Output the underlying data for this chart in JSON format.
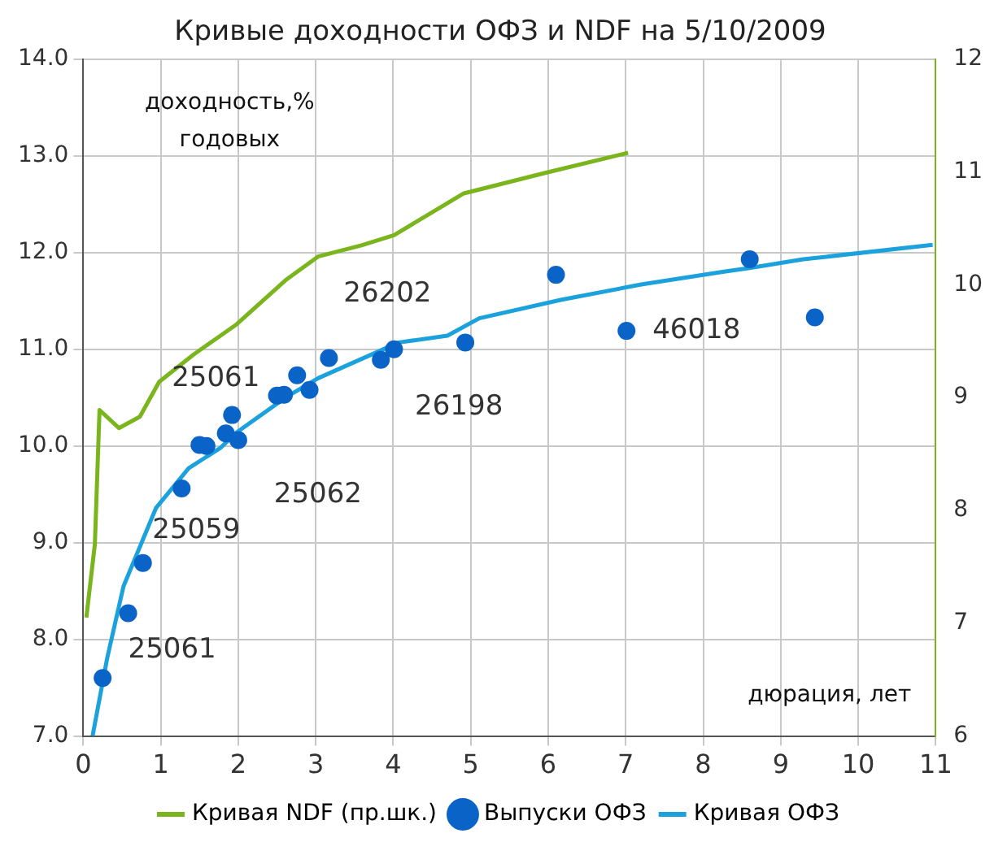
{
  "chart_data": {
    "type": "line",
    "title": "Кривые доходности ОФЗ и NDF на 5/10/2009",
    "xlabel": "дюрация, лет",
    "ylabel": "доходность,% годовых",
    "xlim": [
      0,
      11
    ],
    "xticks": [
      0,
      1,
      2,
      3,
      4,
      5,
      6,
      7,
      8,
      9,
      10,
      11
    ],
    "ylim": [
      7,
      14
    ],
    "yticks": [
      {
        "value": 7,
        "label": "7.0"
      },
      {
        "value": 8,
        "label": "8.0"
      },
      {
        "value": 9,
        "label": "9.0"
      },
      {
        "value": 10,
        "label": "10.0"
      },
      {
        "value": 11,
        "label": "11.0"
      },
      {
        "value": 12,
        "label": "12.0"
      },
      {
        "value": 13,
        "label": "13.0"
      },
      {
        "value": 14,
        "label": "14.0"
      }
    ],
    "y2lim": [
      6,
      12
    ],
    "y2ticks": [
      6,
      7,
      8,
      9,
      10,
      11,
      12
    ],
    "grid": true,
    "legend": "bottom",
    "line_style": "solid",
    "series": [
      {
        "name": "Кривая NDF (пр.шк.)",
        "type": "line",
        "axis": "y2",
        "color": "#7ab51d",
        "marker": "none",
        "x": [
          0.04,
          0.15,
          0.21,
          0.46,
          0.73,
          0.98,
          1.42,
          1.98,
          2.61,
          3.03,
          3.59,
          4.01,
          4.91,
          5.95,
          7.03
        ],
        "values": [
          7.05,
          7.7,
          8.89,
          8.73,
          8.83,
          9.14,
          9.38,
          9.65,
          10.04,
          10.25,
          10.35,
          10.44,
          10.81,
          10.99,
          11.17
        ]
      },
      {
        "name": "Выпуски ОФЗ",
        "type": "scatter",
        "color": "#0a64c8",
        "marker": "circle",
        "x": [
          0.25,
          0.58,
          0.77,
          1.27,
          1.5,
          1.59,
          1.84,
          1.92,
          2.0,
          2.5,
          2.59,
          2.76,
          2.92,
          3.17,
          3.84,
          4.01,
          4.93,
          6.1,
          7.01,
          8.6,
          9.44
        ],
        "values": [
          7.6,
          8.27,
          8.79,
          9.56,
          10.01,
          10.0,
          10.13,
          10.32,
          10.06,
          10.52,
          10.53,
          10.73,
          10.58,
          10.91,
          10.89,
          11.0,
          11.07,
          11.77,
          11.19,
          11.93,
          11.33
        ]
      },
      {
        "name": "Кривая ОФЗ",
        "type": "line",
        "color": "#1ba1dc",
        "marker": "none",
        "x": [
          0.12,
          0.31,
          0.52,
          0.94,
          1.36,
          1.77,
          1.98,
          2.61,
          3.03,
          4.07,
          4.7,
          5.11,
          6.16,
          7.2,
          8.25,
          8.6,
          9.29,
          10.96
        ],
        "values": [
          7.0,
          7.81,
          8.55,
          9.36,
          9.77,
          9.98,
          10.14,
          10.5,
          10.7,
          11.07,
          11.14,
          11.32,
          11.51,
          11.67,
          11.8,
          11.84,
          11.93,
          12.08
        ]
      }
    ],
    "annotations": [
      {
        "text": "26202",
        "x": 4.01,
        "y": 11.0
      },
      {
        "text": "25061",
        "x": 1.92,
        "y": 10.32
      },
      {
        "text": "26198",
        "x": 3.84,
        "y": 10.89
      },
      {
        "text": "25062",
        "x": 2.0,
        "y": 10.06
      },
      {
        "text": "25059",
        "x": 1.27,
        "y": 9.56
      },
      {
        "text": "25061",
        "x": 0.58,
        "y": 8.27
      },
      {
        "text": "46018",
        "x": 7.01,
        "y": 11.19
      }
    ]
  }
}
